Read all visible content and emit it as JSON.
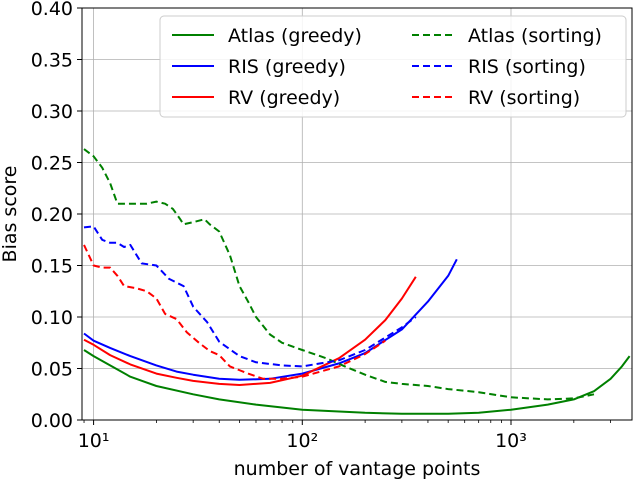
{
  "chart_data": {
    "type": "line",
    "xlabel": "number of vantage points",
    "ylabel": "Bias score",
    "xscale": "log",
    "xlim": [
      8.8,
      3800
    ],
    "ylim": [
      0,
      0.4
    ],
    "grid": true,
    "legend_position": "top-right",
    "xticks": [
      {
        "value": 10,
        "label": "10¹"
      },
      {
        "value": 100,
        "label": "10²"
      },
      {
        "value": 1000,
        "label": "10³"
      }
    ],
    "yticks": [
      {
        "value": 0.0,
        "label": "0.00"
      },
      {
        "value": 0.05,
        "label": "0.05"
      },
      {
        "value": 0.1,
        "label": "0.10"
      },
      {
        "value": 0.15,
        "label": "0.15"
      },
      {
        "value": 0.2,
        "label": "0.20"
      },
      {
        "value": 0.25,
        "label": "0.25"
      },
      {
        "value": 0.3,
        "label": "0.30"
      },
      {
        "value": 0.35,
        "label": "0.35"
      },
      {
        "value": 0.4,
        "label": "0.40"
      }
    ],
    "series": [
      {
        "name": "Atlas (greedy)",
        "color": "#008000",
        "dash": "solid",
        "points": [
          [
            9,
            0.068
          ],
          [
            10,
            0.062
          ],
          [
            12,
            0.053
          ],
          [
            15,
            0.042
          ],
          [
            20,
            0.033
          ],
          [
            30,
            0.025
          ],
          [
            40,
            0.02
          ],
          [
            60,
            0.015
          ],
          [
            100,
            0.01
          ],
          [
            200,
            0.007
          ],
          [
            300,
            0.006
          ],
          [
            500,
            0.006
          ],
          [
            700,
            0.007
          ],
          [
            1000,
            0.01
          ],
          [
            1500,
            0.015
          ],
          [
            2000,
            0.02
          ],
          [
            2500,
            0.028
          ],
          [
            3000,
            0.04
          ],
          [
            3400,
            0.052
          ],
          [
            3700,
            0.062
          ]
        ]
      },
      {
        "name": "RIS (greedy)",
        "color": "#0000ff",
        "dash": "solid",
        "points": [
          [
            9,
            0.084
          ],
          [
            10,
            0.077
          ],
          [
            12,
            0.07
          ],
          [
            15,
            0.062
          ],
          [
            20,
            0.053
          ],
          [
            25,
            0.047
          ],
          [
            30,
            0.044
          ],
          [
            40,
            0.04
          ],
          [
            50,
            0.039
          ],
          [
            70,
            0.04
          ],
          [
            100,
            0.045
          ],
          [
            150,
            0.055
          ],
          [
            200,
            0.065
          ],
          [
            300,
            0.088
          ],
          [
            400,
            0.115
          ],
          [
            500,
            0.14
          ],
          [
            550,
            0.156
          ]
        ]
      },
      {
        "name": "RV (greedy)",
        "color": "#ff0000",
        "dash": "solid",
        "points": [
          [
            9,
            0.078
          ],
          [
            10,
            0.073
          ],
          [
            12,
            0.063
          ],
          [
            15,
            0.054
          ],
          [
            20,
            0.045
          ],
          [
            25,
            0.041
          ],
          [
            30,
            0.038
          ],
          [
            40,
            0.035
          ],
          [
            50,
            0.034
          ],
          [
            70,
            0.036
          ],
          [
            100,
            0.043
          ],
          [
            150,
            0.06
          ],
          [
            200,
            0.078
          ],
          [
            250,
            0.097
          ],
          [
            300,
            0.118
          ],
          [
            350,
            0.139
          ]
        ]
      },
      {
        "name": "Atlas (sorting)",
        "color": "#008000",
        "dash": "dashed",
        "points": [
          [
            9,
            0.263
          ],
          [
            10,
            0.256
          ],
          [
            11,
            0.245
          ],
          [
            12,
            0.23
          ],
          [
            13,
            0.21
          ],
          [
            15,
            0.21
          ],
          [
            18,
            0.21
          ],
          [
            20,
            0.212
          ],
          [
            22,
            0.21
          ],
          [
            24,
            0.205
          ],
          [
            26,
            0.195
          ],
          [
            27,
            0.19
          ],
          [
            30,
            0.192
          ],
          [
            34,
            0.195
          ],
          [
            36,
            0.19
          ],
          [
            40,
            0.183
          ],
          [
            45,
            0.16
          ],
          [
            50,
            0.13
          ],
          [
            55,
            0.115
          ],
          [
            60,
            0.1
          ],
          [
            70,
            0.083
          ],
          [
            80,
            0.075
          ],
          [
            100,
            0.068
          ],
          [
            130,
            0.06
          ],
          [
            160,
            0.052
          ],
          [
            200,
            0.044
          ],
          [
            250,
            0.037
          ],
          [
            300,
            0.035
          ],
          [
            400,
            0.033
          ],
          [
            500,
            0.03
          ],
          [
            700,
            0.027
          ],
          [
            1000,
            0.022
          ],
          [
            1500,
            0.02
          ],
          [
            2000,
            0.021
          ],
          [
            2500,
            0.025
          ]
        ]
      },
      {
        "name": "RIS (sorting)",
        "color": "#0000ff",
        "dash": "dashed",
        "points": [
          [
            9,
            0.187
          ],
          [
            10,
            0.188
          ],
          [
            11,
            0.175
          ],
          [
            12,
            0.172
          ],
          [
            13,
            0.172
          ],
          [
            14,
            0.168
          ],
          [
            15,
            0.17
          ],
          [
            17,
            0.152
          ],
          [
            20,
            0.15
          ],
          [
            23,
            0.137
          ],
          [
            27,
            0.13
          ],
          [
            30,
            0.11
          ],
          [
            35,
            0.095
          ],
          [
            40,
            0.076
          ],
          [
            50,
            0.062
          ],
          [
            60,
            0.056
          ],
          [
            80,
            0.053
          ],
          [
            100,
            0.052
          ],
          [
            150,
            0.058
          ],
          [
            200,
            0.068
          ],
          [
            300,
            0.09
          ],
          [
            350,
            0.1
          ]
        ]
      },
      {
        "name": "RV (sorting)",
        "color": "#ff0000",
        "dash": "dashed",
        "points": [
          [
            9,
            0.17
          ],
          [
            10,
            0.15
          ],
          [
            11,
            0.148
          ],
          [
            12,
            0.148
          ],
          [
            13,
            0.14
          ],
          [
            14,
            0.13
          ],
          [
            16,
            0.128
          ],
          [
            18,
            0.125
          ],
          [
            20,
            0.118
          ],
          [
            22,
            0.103
          ],
          [
            25,
            0.098
          ],
          [
            28,
            0.085
          ],
          [
            32,
            0.075
          ],
          [
            36,
            0.067
          ],
          [
            40,
            0.063
          ],
          [
            45,
            0.052
          ],
          [
            55,
            0.045
          ],
          [
            65,
            0.04
          ],
          [
            80,
            0.04
          ],
          [
            100,
            0.042
          ],
          [
            150,
            0.052
          ],
          [
            200,
            0.064
          ],
          [
            250,
            0.077
          ]
        ]
      }
    ],
    "legend": {
      "columns": [
        [
          "Atlas (greedy)",
          "RIS (greedy)",
          "RV (greedy)"
        ],
        [
          "Atlas (sorting)",
          "RIS (sorting)",
          "RV (sorting)"
        ]
      ]
    }
  }
}
